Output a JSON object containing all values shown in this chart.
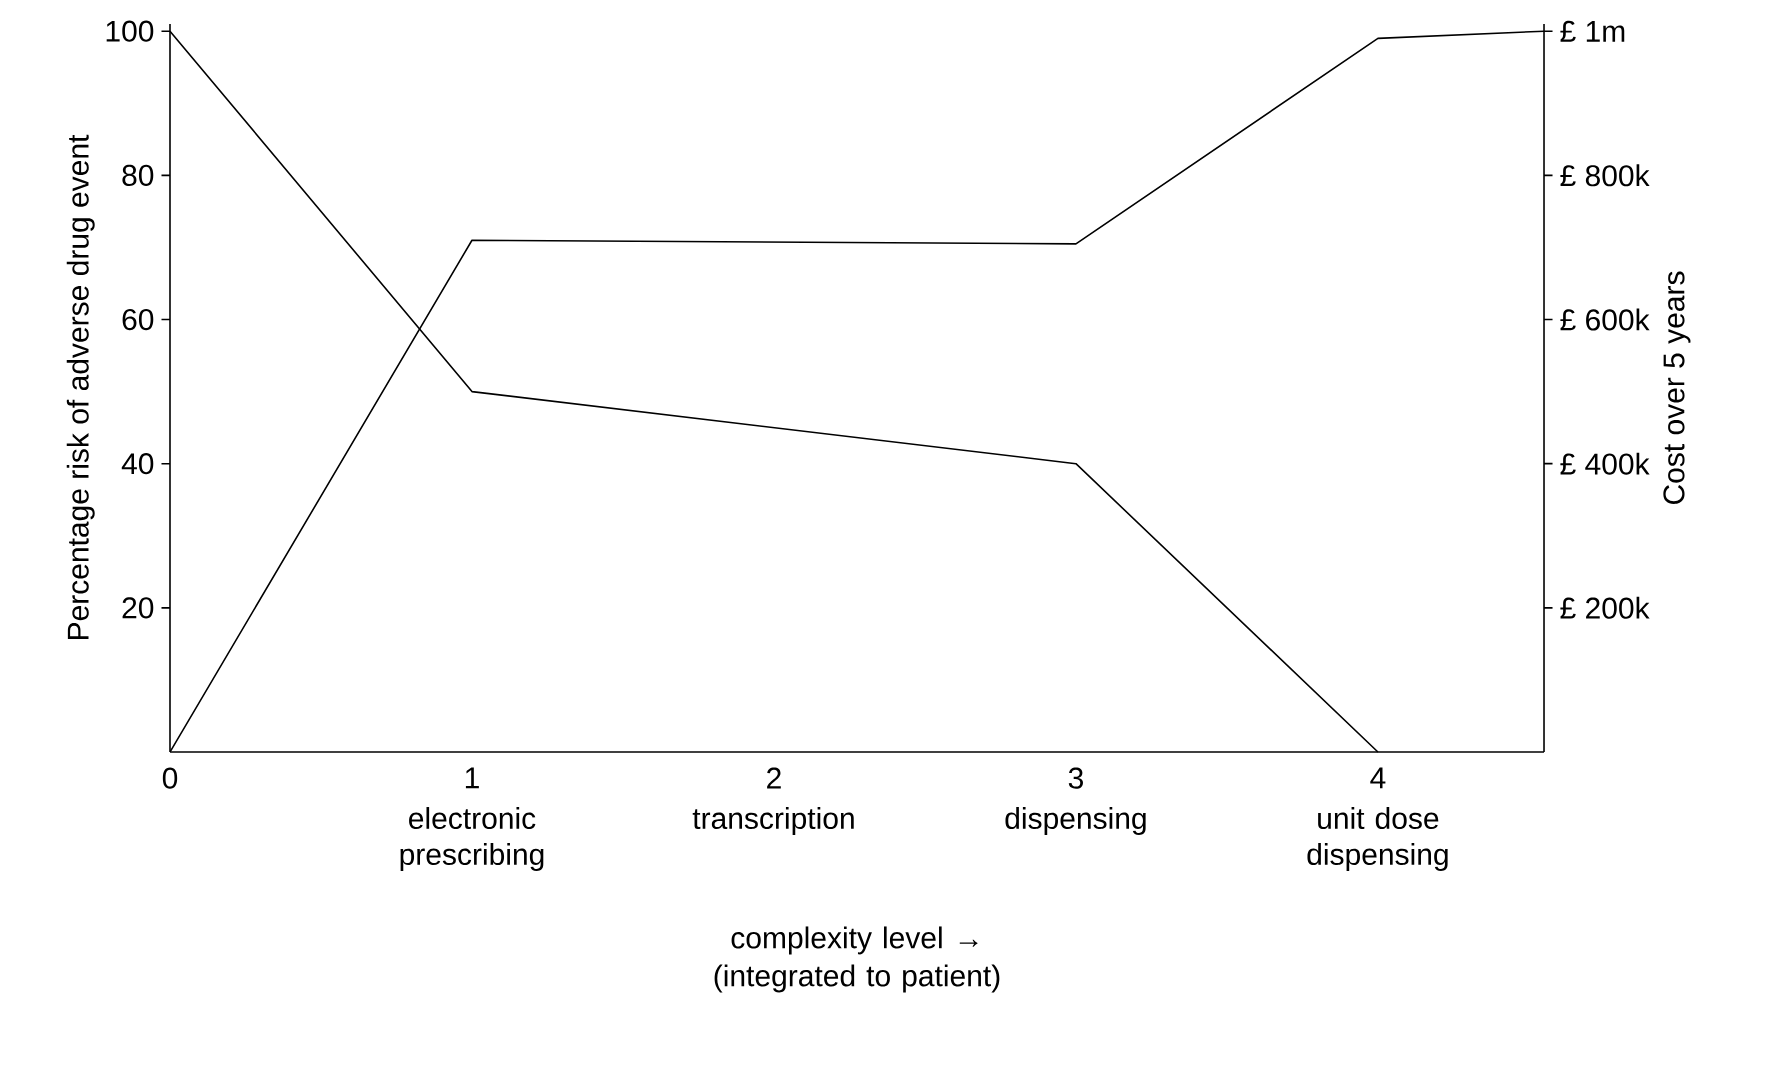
{
  "chart_data": {
    "type": "line",
    "xlabel": "complexity level → (integrated to patient)",
    "ylabel": "Percentage risk of adverse drug event",
    "y2label": "Cost over 5 years",
    "xlim": [
      0,
      4.55
    ],
    "ylim": [
      0,
      101
    ],
    "y2lim": [
      0,
      1010000
    ],
    "xticks": [
      0,
      1,
      2,
      3,
      4
    ],
    "yticks": [
      20,
      40,
      60,
      80,
      100
    ],
    "y2ticks": [
      {
        "value": 200000,
        "label": "£ 200k"
      },
      {
        "value": 400000,
        "label": "£ 400k"
      },
      {
        "value": 600000,
        "label": "£ 600k"
      },
      {
        "value": 800000,
        "label": "£ 800k"
      },
      {
        "value": 1000000,
        "label": "£ 1m"
      }
    ],
    "series": [
      {
        "color": "#000000",
        "x": [
          0,
          1,
          3,
          4
        ],
        "values": [
          100,
          50,
          40,
          0
        ]
      },
      {
        "color": "#000000",
        "axis": "y2",
        "x": [
          0,
          1,
          3,
          4,
          4.55
        ],
        "values": [
          0,
          710000,
          705000,
          990000,
          1000000
        ]
      }
    ],
    "annotations": [
      "electronic prescribing",
      "transcription",
      "dispensing",
      "unit dose dispensing"
    ],
    "grid": false,
    "marker": "none",
    "line_style": "solid"
  }
}
